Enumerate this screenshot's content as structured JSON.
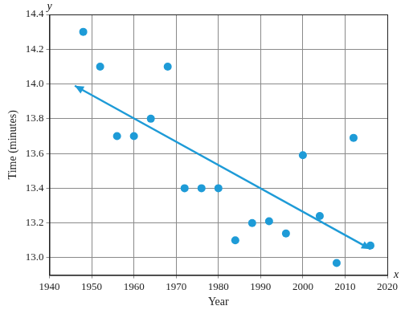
{
  "chart_data": {
    "type": "scatter",
    "x_label": "Year",
    "y_label": "Time (minutes)",
    "annotations": [
      "y",
      "x"
    ],
    "xlim": [
      1940,
      2020
    ],
    "xticks": [
      1940,
      1950,
      1960,
      1970,
      1980,
      1990,
      2000,
      2010,
      2020
    ],
    "ylim": [
      12.9,
      14.4
    ],
    "yticks": [
      {
        "value": 13,
        "label": "13.0"
      },
      13.2,
      13.4,
      13.6,
      13.8,
      {
        "value": 14,
        "label": "14.0"
      },
      14.2,
      14.4
    ],
    "grid": true,
    "series": [
      {
        "type": "scatter",
        "color": "#1e9bd7",
        "marker": "circle",
        "x": [
          1948,
          1952,
          1956,
          1960,
          1964,
          1968,
          1972,
          1976,
          1980,
          1984,
          1988,
          1992,
          1996,
          2000,
          2004,
          2008,
          2012,
          2016
        ],
        "values": [
          14.3,
          14.1,
          13.7,
          13.7,
          13.8,
          14.1,
          13.4,
          13.4,
          13.4,
          13.1,
          13.2,
          13.21,
          13.14,
          13.59,
          13.24,
          12.97,
          13.69,
          13.07
        ]
      },
      {
        "type": "line",
        "color": "#1e9bd7",
        "marker": "arrow",
        "line_style": "solid",
        "x": [
          1946,
          2016
        ],
        "values": [
          13.99,
          13.05
        ]
      }
    ]
  }
}
